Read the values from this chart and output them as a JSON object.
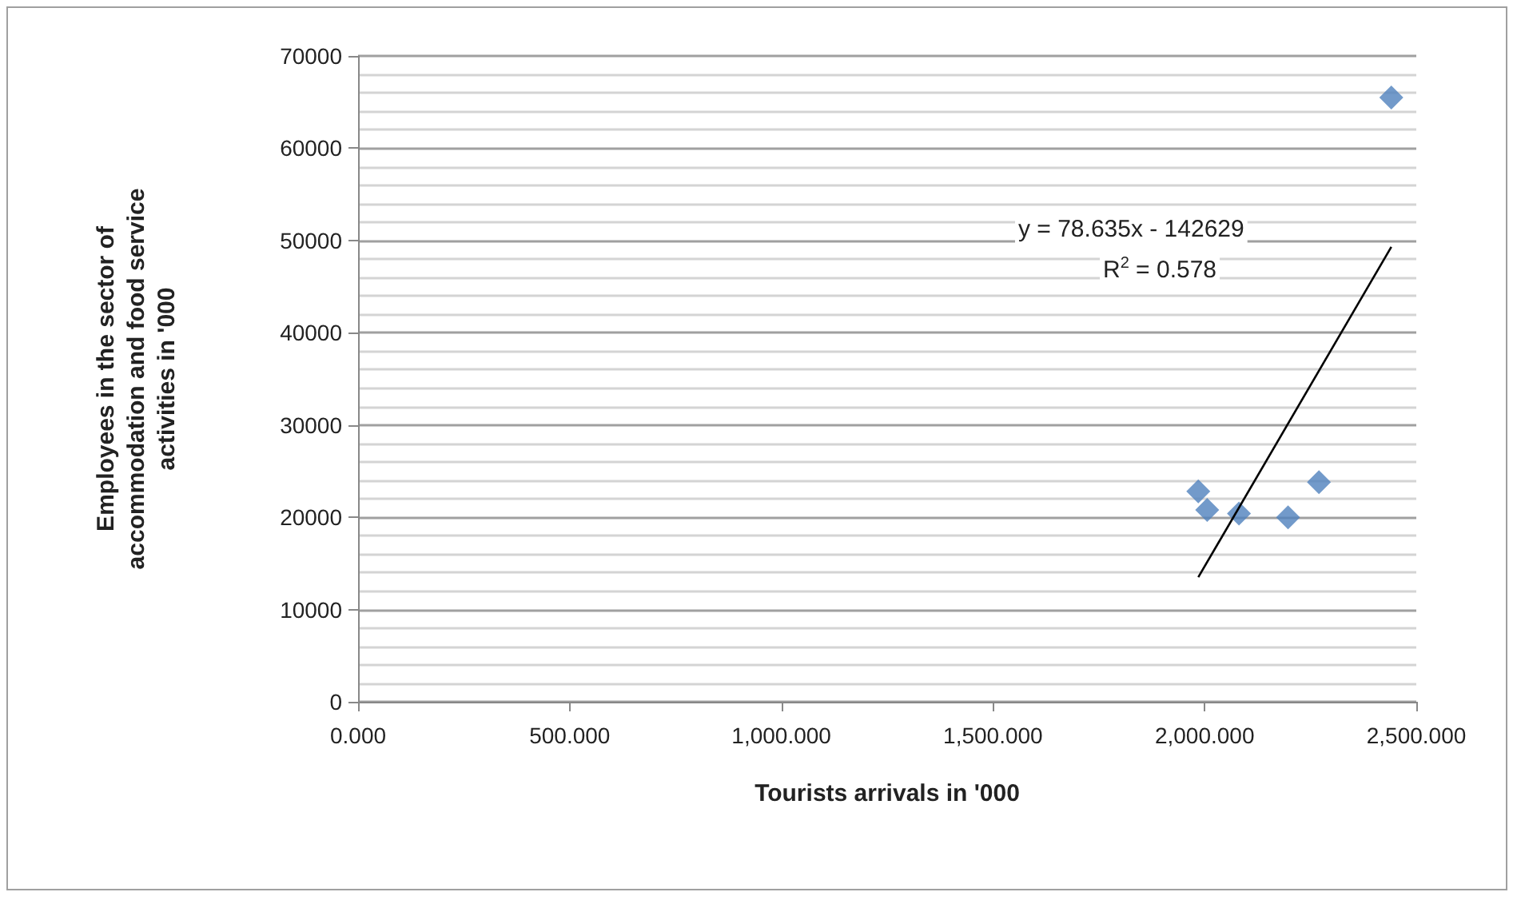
{
  "chart_data": {
    "type": "scatter",
    "xlabel": "Tourists arrivals in '000",
    "ylabel": "Employees in the sector of accommodation and food service activities in '000",
    "series": [
      {
        "type": "scatter",
        "color": "#4f81bd",
        "marker": "diamond",
        "x": [
          1985,
          2006,
          2081,
          2197,
          2270,
          2441
        ],
        "values": [
          22800,
          20800,
          20400,
          20000,
          23800,
          65500
        ]
      },
      {
        "type": "line",
        "color": "#000000",
        "marker": "none",
        "x": [
          1985,
          2441
        ],
        "values": [
          13500,
          49300
        ]
      }
    ],
    "annotations": [
      "y = 78.635x - 142629",
      "R$^{2}$ = 0.578"
    ],
    "xlim": [
      0,
      2500
    ],
    "xticks": [
      {
        "value": 0,
        "label": "0.000"
      },
      {
        "value": 500,
        "label": "500.000"
      },
      {
        "value": 1000,
        "label": "1,000.000"
      },
      {
        "value": 1500,
        "label": "1,500.000"
      },
      {
        "value": 2000,
        "label": "2,000.000"
      },
      {
        "value": 2500,
        "label": "2,500.000"
      }
    ],
    "ylim": [
      0,
      70000
    ],
    "yticks": [
      0,
      {
        "value": 2000,
        "label": null
      },
      {
        "value": 4000,
        "label": null
      },
      {
        "value": 6000,
        "label": null
      },
      {
        "value": 8000,
        "label": null
      },
      10000,
      {
        "value": 12000,
        "label": null
      },
      {
        "value": 14000,
        "label": null
      },
      {
        "value": 16000,
        "label": null
      },
      {
        "value": 18000,
        "label": null
      },
      20000,
      {
        "value": 22000,
        "label": null
      },
      {
        "value": 24000,
        "label": null
      },
      {
        "value": 26000,
        "label": null
      },
      {
        "value": 28000,
        "label": null
      },
      30000,
      {
        "value": 32000,
        "label": null
      },
      {
        "value": 34000,
        "label": null
      },
      {
        "value": 36000,
        "label": null
      },
      {
        "value": 38000,
        "label": null
      },
      40000,
      {
        "value": 42000,
        "label": null
      },
      {
        "value": 44000,
        "label": null
      },
      {
        "value": 46000,
        "label": null
      },
      {
        "value": 48000,
        "label": null
      },
      50000,
      {
        "value": 52000,
        "label": null
      },
      {
        "value": 54000,
        "label": null
      },
      {
        "value": 56000,
        "label": null
      },
      {
        "value": 58000,
        "label": null
      },
      60000,
      {
        "value": 62000,
        "label": null
      },
      {
        "value": 64000,
        "label": null
      },
      {
        "value": 66000,
        "label": null
      },
      {
        "value": 68000,
        "label": null
      },
      70000
    ],
    "grid": "y"
  }
}
